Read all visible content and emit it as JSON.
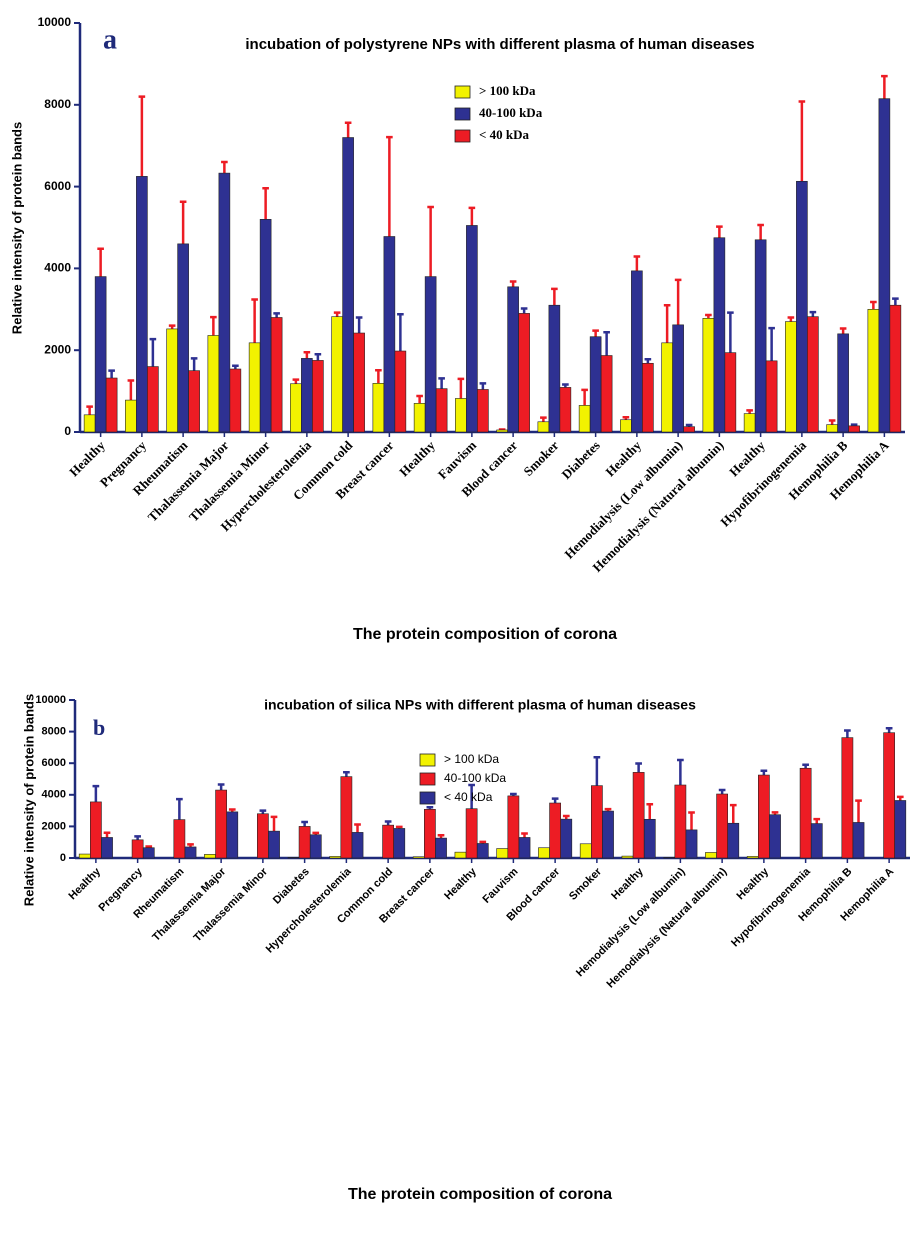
{
  "chart_data": [
    {
      "type": "bar",
      "panel_label": "a",
      "title": "incubation of polystyrene NPs with different plasma of human diseases",
      "x_label": "The protein composition of corona",
      "y_label": "Relative intensity of protein bands",
      "categories": [
        "Healthy",
        "Pregnancy",
        "Rheumatism",
        "Thalassemia Major",
        "Thalassemia Minor",
        "Hypercholesterolemia",
        "Common cold",
        "Breast cancer",
        "Healthy",
        "Fauvism",
        "Blood cancer",
        "Smoker",
        "Diabetes",
        "Healthy",
        "Hemodialysis (Low albumin)",
        "Hemodialysis (Natural albumin)",
        "Healthy",
        "Hypofibrinogenemia",
        "Hemophilia B",
        "Hemophilia A"
      ],
      "series": [
        {
          "name": "> 100 kDa",
          "color": "#f2f200",
          "error_color": "#ed1c24",
          "values": [
            420,
            780,
            2520,
            2360,
            2180,
            1180,
            2820,
            1190,
            700,
            820,
            50,
            250,
            650,
            300,
            2180,
            2780,
            450,
            2700,
            180,
            3000
          ],
          "errors": [
            200,
            480,
            80,
            450,
            1060,
            100,
            100,
            320,
            180,
            480,
            10,
            100,
            380,
            60,
            920,
            80,
            80,
            100,
            100,
            180
          ]
        },
        {
          "name": "40-100 kDa",
          "color": "#2e3192",
          "error_color": "#ed1c24",
          "values": [
            3800,
            6250,
            4600,
            6330,
            5200,
            1800,
            7200,
            4780,
            3800,
            5050,
            3550,
            3100,
            2330,
            3940,
            2620,
            4750,
            4700,
            6130,
            2400,
            8150
          ],
          "errors": [
            680,
            1950,
            1030,
            270,
            760,
            150,
            360,
            2430,
            1700,
            430,
            130,
            400,
            150,
            350,
            1100,
            270,
            360,
            1950,
            130,
            550
          ]
        },
        {
          "name": "< 40 kDa",
          "color": "#ed1c24",
          "error_color": "#2e3192",
          "values": [
            1320,
            1600,
            1500,
            1540,
            2800,
            1750,
            2420,
            1980,
            1060,
            1040,
            2900,
            1090,
            1870,
            1680,
            130,
            1940,
            1740,
            2820,
            150,
            3100
          ],
          "errors": [
            180,
            670,
            300,
            80,
            100,
            150,
            380,
            900,
            250,
            150,
            120,
            70,
            570,
            100,
            40,
            980,
            800,
            110,
            30,
            160
          ]
        }
      ],
      "ylim": [
        0,
        10000
      ],
      "yticks": [
        0,
        2000,
        4000,
        6000,
        8000,
        10000
      ]
    },
    {
      "type": "bar",
      "panel_label": "b",
      "title": "incubation of silica NPs with different plasma of human diseases",
      "x_label": "The protein composition of corona",
      "y_label": "Relative intensity of protein bands",
      "categories": [
        "Healthy",
        "Pregnancy",
        "Rheumatism",
        "Thalassemia Major",
        "Thalassemia Minor",
        "Diabetes",
        "Hypercholesterolemia",
        "Common cold",
        "Breast cancer",
        "Healthy",
        "Fauvism",
        "Blood cancer",
        "Smoker",
        "Healthy",
        "Hemodialysis (Low albumin)",
        "Hemodialysis (Natural albumin)",
        "Healthy",
        "Hypofibrinogenemia",
        "Hemophilia B",
        "Hemophilia A"
      ],
      "series": [
        {
          "name": "> 100 kDa",
          "color": "#f2f200",
          "values": [
            250,
            0,
            0,
            230,
            0,
            30,
            100,
            0,
            80,
            370,
            600,
            650,
            900,
            120,
            30,
            350,
            100,
            0,
            0,
            0
          ]
        },
        {
          "name": "40-100 kDa",
          "color": "#ed1c24",
          "error_color": "#2e3192",
          "values": [
            3550,
            1150,
            2430,
            4300,
            2800,
            2000,
            5150,
            2080,
            3080,
            3120,
            3930,
            3480,
            4580,
            5420,
            4620,
            4050,
            5250,
            5680,
            7620,
            7930
          ],
          "errors": [
            1000,
            220,
            1300,
            350,
            200,
            280,
            280,
            230,
            130,
            1500,
            120,
            280,
            1800,
            560,
            1580,
            250,
            270,
            220,
            450,
            280
          ]
        },
        {
          "name": "< 40 kDa",
          "color": "#2e3192",
          "error_color": "#ed1c24",
          "values": [
            1300,
            650,
            700,
            2920,
            1700,
            1470,
            1620,
            1870,
            1260,
            920,
            1300,
            2460,
            2970,
            2450,
            1780,
            2200,
            2740,
            2180,
            2250,
            3640
          ],
          "errors": [
            300,
            80,
            160,
            150,
            900,
            120,
            500,
            100,
            180,
            100,
            250,
            200,
            120,
            950,
            1100,
            1150,
            150,
            280,
            1380,
            230
          ]
        }
      ],
      "ylim": [
        0,
        10000
      ],
      "yticks": [
        0,
        2000,
        4000,
        6000,
        8000,
        10000
      ]
    }
  ]
}
